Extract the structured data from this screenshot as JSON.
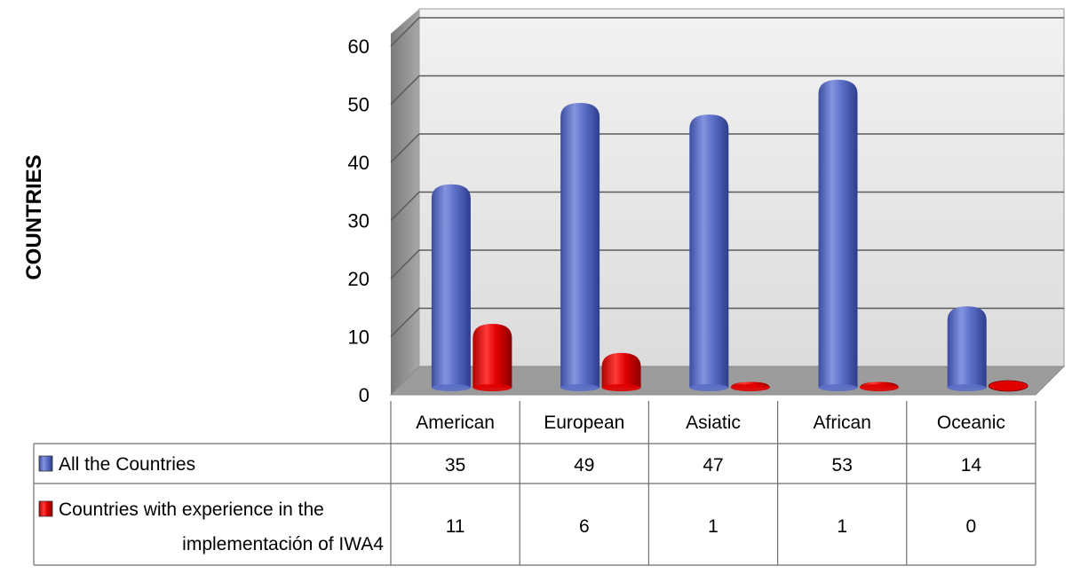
{
  "chart_data": {
    "type": "bar",
    "title": "",
    "xlabel": "",
    "ylabel": "COUNTRIES",
    "ylim": [
      0,
      60
    ],
    "yticks": [
      "0",
      "10",
      "20",
      "30",
      "40",
      "50",
      "60"
    ],
    "grid": true,
    "legend_placement": "data-table-left",
    "categories": [
      "American",
      "European",
      "Asiatic",
      "African",
      "Oceanic"
    ],
    "series": [
      {
        "name": "All the Countries",
        "values": [
          35,
          49,
          47,
          53,
          14
        ],
        "labels": [
          "35",
          "49",
          "47",
          "53",
          "14"
        ],
        "color": "#5b6fc7"
      },
      {
        "name": "Countries with experience in the implementación of IWA4",
        "name_lines": [
          "Countries with experience in the",
          "implementación of IWA4"
        ],
        "values": [
          11,
          6,
          1,
          1,
          0
        ],
        "labels": [
          "11",
          "6",
          "1",
          "1",
          "0"
        ],
        "color": "#e00000"
      }
    ]
  }
}
